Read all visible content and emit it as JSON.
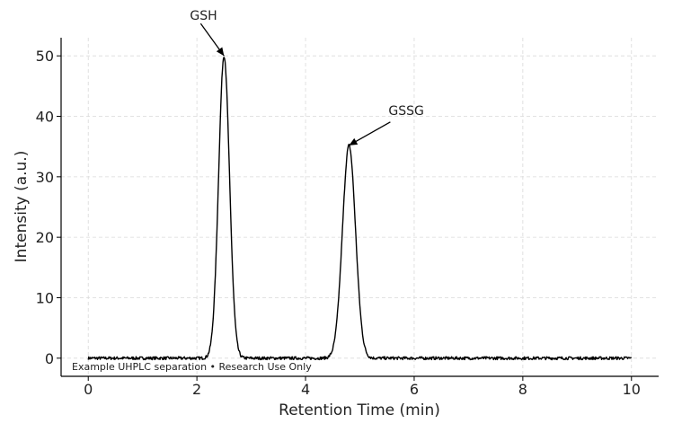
{
  "chart_data": {
    "type": "line",
    "xlabel": "Retention Time (min)",
    "ylabel": "Intensity (a.u.)",
    "xlim": [
      -0.5,
      10.5
    ],
    "ylim": [
      -3,
      53
    ],
    "x_ticks": [
      0,
      2,
      4,
      6,
      8,
      10
    ],
    "y_ticks": [
      0,
      10,
      20,
      30,
      40,
      50
    ],
    "grid": true,
    "series": [
      {
        "color": "#000000",
        "peaks": [
          {
            "center": 2.5,
            "height": 50.0,
            "width_sigma": 0.1
          },
          {
            "center": 4.8,
            "height": 35.2,
            "width_sigma": 0.12
          }
        ],
        "baseline": 0,
        "noise_amplitude": 0.25,
        "x_range": [
          0,
          10
        ]
      }
    ],
    "annotations": [
      {
        "text": "GSH",
        "x": 2.5,
        "y": 50
      },
      {
        "text": "GSSG",
        "x": 4.8,
        "y": 35.2
      }
    ],
    "footnote": "Example UHPLC separation • Research Use Only"
  }
}
